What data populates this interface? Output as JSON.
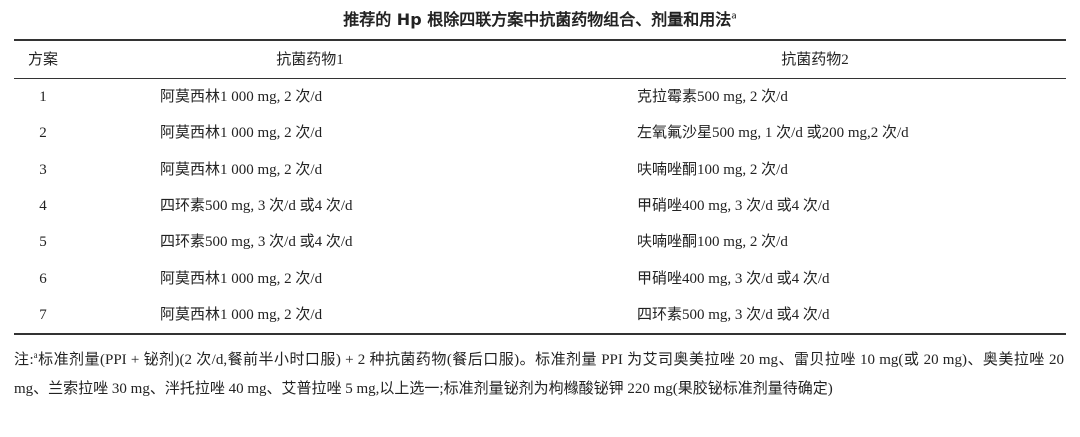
{
  "header": {
    "title": "推荐的 Hp 根除四联方案中抗菌药物组合、剂量和用法",
    "title_sup": "a"
  },
  "table": {
    "columns": [
      "方案",
      "抗菌药物1",
      "抗菌药物2"
    ],
    "rows": [
      [
        "1",
        "阿莫西林1 000 mg, 2 次/d",
        "克拉霉素500 mg, 2 次/d"
      ],
      [
        "2",
        "阿莫西林1 000 mg, 2 次/d",
        "左氧氟沙星500 mg, 1 次/d 或200 mg,2 次/d"
      ],
      [
        "3",
        "阿莫西林1 000 mg, 2 次/d",
        "呋喃唑酮100 mg, 2 次/d"
      ],
      [
        "4",
        "四环素500 mg, 3 次/d 或4 次/d",
        "甲硝唑400 mg, 3 次/d 或4 次/d"
      ],
      [
        "5",
        "四环素500 mg, 3 次/d 或4 次/d",
        "呋喃唑酮100 mg, 2 次/d"
      ],
      [
        "6",
        "阿莫西林1 000 mg, 2 次/d",
        "甲硝唑400 mg, 3 次/d 或4 次/d"
      ],
      [
        "7",
        "阿莫西林1 000 mg, 2 次/d",
        "四环素500 mg, 3 次/d 或4 次/d"
      ]
    ]
  },
  "note": {
    "prefix": "注:",
    "sup": "a",
    "text": "标准剂量(PPI + 铋剂)(2 次/d,餐前半小时口服) + 2 种抗菌药物(餐后口服)。标准剂量 PPI 为艾司奥美拉唑 20 mg、雷贝拉唑 10 mg(或 20 mg)、奥美拉唑 20 mg、兰索拉唑 30 mg、泮托拉唑 40 mg、艾普拉唑 5 mg,以上选一;标准剂量铋剂为枸橼酸铋钾 220 mg(果胶铋标准剂量待确定)"
  }
}
